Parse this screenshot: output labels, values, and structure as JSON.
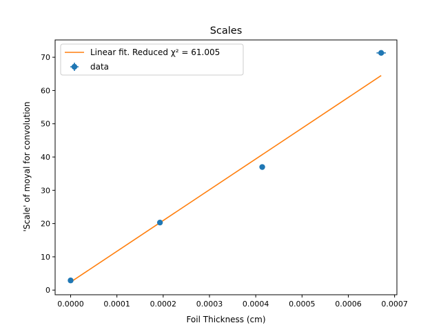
{
  "chart_data": {
    "type": "scatter",
    "title": "Scales",
    "xlabel": "Foil Thickness (cm)",
    "ylabel": "'Scale' of moyal for convolution",
    "xlim": [
      -3.35e-05,
      0.000705
    ],
    "ylim": [
      -1.4,
      75.2
    ],
    "x_ticks": [
      0.0,
      0.0001,
      0.0002,
      0.0003,
      0.0004,
      0.0005,
      0.0006,
      0.0007
    ],
    "x_tick_labels": [
      "0.0000",
      "0.0001",
      "0.0002",
      "0.0003",
      "0.0004",
      "0.0005",
      "0.0006",
      "0.0007"
    ],
    "y_ticks": [
      0,
      10,
      20,
      30,
      40,
      50,
      60,
      70
    ],
    "y_tick_labels": [
      "0",
      "10",
      "20",
      "30",
      "40",
      "50",
      "60",
      "70"
    ],
    "grid": false,
    "legend_position": "top-left",
    "series": [
      {
        "name": "data",
        "kind": "errorbar-scatter",
        "color": "#1f77b4",
        "x": [
          0.0,
          0.000193,
          0.000414,
          0.000671
        ],
        "y": [
          2.9,
          20.3,
          37.0,
          71.3
        ],
        "xerr": [
          0.0,
          0.0,
          0.0,
          1e-05
        ],
        "yerr": [
          0.0,
          0.0,
          0.0,
          0.0
        ]
      },
      {
        "name": "Linear fit. Reduced χ² = 61.005",
        "kind": "line",
        "color": "#ff7f0e",
        "x": [
          0.0,
          0.000671
        ],
        "y": [
          2.4,
          64.5
        ]
      }
    ]
  }
}
